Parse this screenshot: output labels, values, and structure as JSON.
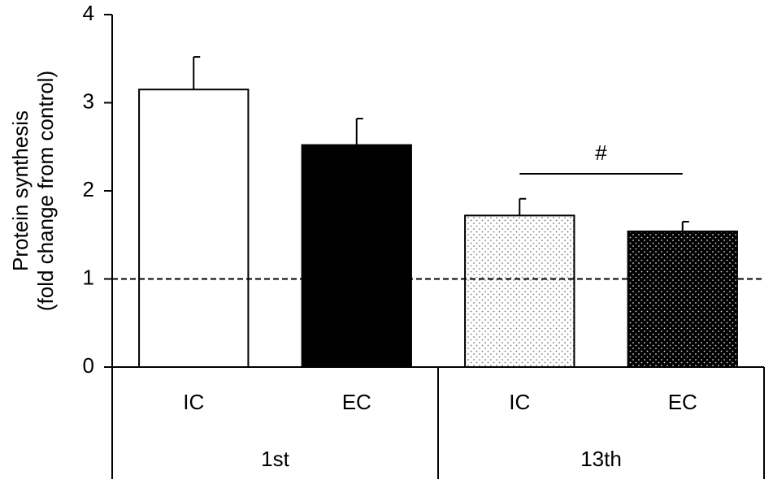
{
  "chart_data": {
    "type": "bar",
    "ylabel": [
      "Protein synthesis",
      "(fold change from control)"
    ],
    "categories": [
      "IC",
      "EC",
      "IC",
      "EC"
    ],
    "groups": [
      "1st",
      "13th"
    ],
    "values": [
      3.15,
      2.52,
      1.72,
      1.54
    ],
    "errors": [
      0.37,
      0.3,
      0.19,
      0.11
    ],
    "colors": [
      "#ffffff",
      "#000000",
      "#ffffff",
      "#000000"
    ],
    "patterns": [
      "none",
      "none",
      "dots",
      "dots"
    ],
    "reference_line": 1,
    "annotation": "#",
    "ylim": [
      0,
      4
    ],
    "yticks": [
      0,
      1,
      2,
      3,
      4
    ],
    "grid": false
  }
}
